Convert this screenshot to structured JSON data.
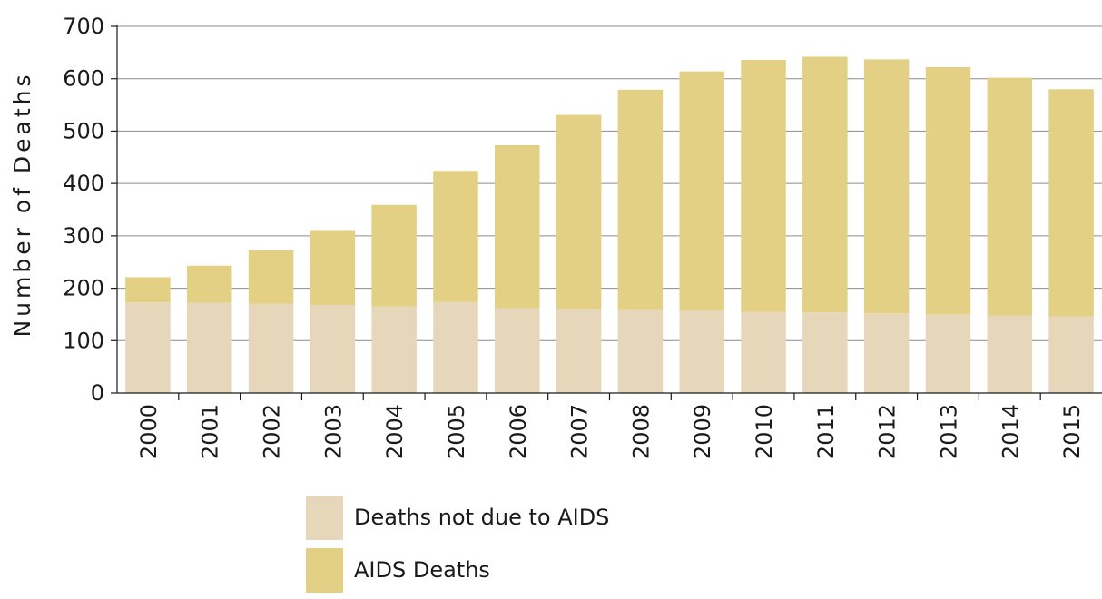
{
  "chart_data": {
    "type": "bar",
    "stacked": true,
    "categories": [
      "2000",
      "2001",
      "2002",
      "2003",
      "2004",
      "2005",
      "2006",
      "2007",
      "2008",
      "2009",
      "2010",
      "2011",
      "2012",
      "2013",
      "2014",
      "2015"
    ],
    "series": [
      {
        "name": "Deaths not due to AIDS",
        "color": "#e6d7bb",
        "values": [
          173,
          172,
          170,
          168,
          165,
          174,
          162,
          160,
          158,
          157,
          155,
          154,
          152,
          150,
          148,
          146
        ]
      },
      {
        "name": "AIDS Deaths",
        "color": "#e3d085",
        "values": [
          48,
          71,
          102,
          143,
          194,
          250,
          311,
          371,
          421,
          457,
          481,
          488,
          485,
          472,
          454,
          434
        ]
      }
    ],
    "title": "",
    "xlabel": "",
    "ylabel": "Number of Deaths",
    "ylim": [
      0,
      700
    ],
    "yticks": [
      "0",
      "100",
      "200",
      "300",
      "400",
      "500",
      "600",
      "700"
    ],
    "grid": true,
    "legend_position": "bottom-center"
  }
}
